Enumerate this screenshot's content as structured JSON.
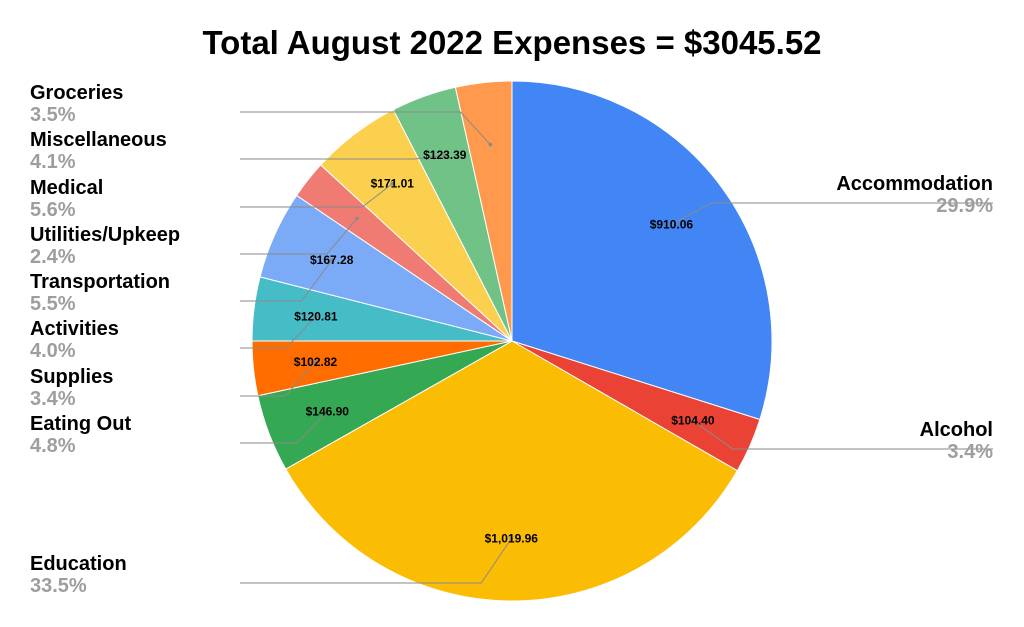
{
  "chart_data": {
    "type": "pie",
    "title": "Total August 2022 Expenses = $3045.52",
    "slices": [
      {
        "category": "Accommodation",
        "value": 910.06,
        "value_label": "$910.06",
        "percent_label": "29.9%",
        "color": "#4285F4"
      },
      {
        "category": "Alcohol",
        "value": 104.4,
        "value_label": "$104.40",
        "percent_label": "3.4%",
        "color": "#EA4335"
      },
      {
        "category": "Education",
        "value": 1019.96,
        "value_label": "$1,019.96",
        "percent_label": "33.5%",
        "color": "#FBBC04"
      },
      {
        "category": "Eating Out",
        "value": 146.9,
        "value_label": "$146.90",
        "percent_label": "4.8%",
        "color": "#34A853"
      },
      {
        "category": "Supplies",
        "value": 102.82,
        "value_label": "$102.82",
        "percent_label": "3.4%",
        "color": "#FF6D01"
      },
      {
        "category": "Activities",
        "value": 120.81,
        "value_label": "$120.81",
        "percent_label": "4.0%",
        "color": "#46BDC6"
      },
      {
        "category": "Transportation",
        "value": 167.28,
        "value_label": "$167.28",
        "percent_label": "5.5%",
        "color": "#7BAAF7"
      },
      {
        "category": "Utilities/Upkeep",
        "value": 72.51,
        "value_label": "",
        "percent_label": "2.4%",
        "color": "#F07B72"
      },
      {
        "category": "Medical",
        "value": 171.01,
        "value_label": "$171.01",
        "percent_label": "5.6%",
        "color": "#FCD04F"
      },
      {
        "category": "Miscellaneous",
        "value": 123.39,
        "value_label": "$123.39",
        "percent_label": "4.1%",
        "color": "#71C287"
      },
      {
        "category": "Groceries",
        "value": 106.38,
        "value_label": "",
        "percent_label": "3.5%",
        "color": "#FF994D"
      }
    ],
    "start_angle": "12 o'clock",
    "direction": "clockwise",
    "legend": "none"
  }
}
